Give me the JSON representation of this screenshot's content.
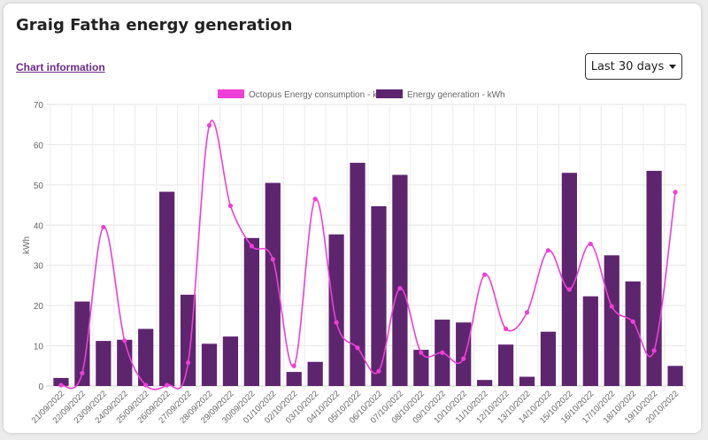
{
  "page": {
    "title": "Graig Fatha energy generation",
    "chart_info_link": "Chart information",
    "range_button": "Last 30 days"
  },
  "colors": {
    "consumption": "#ee3fd6",
    "generation": "#5e256f",
    "link": "#6a2b86"
  },
  "chart_data": {
    "type": "bar",
    "ylabel": "kWh",
    "ylim": [
      0,
      70
    ],
    "yticks": [
      0,
      10,
      20,
      30,
      40,
      50,
      60,
      70
    ],
    "grid": true,
    "legend_position": "top",
    "categories": [
      "21/09/2022",
      "22/09/2022",
      "23/09/2022",
      "24/09/2022",
      "25/09/2022",
      "26/09/2022",
      "27/09/2022",
      "28/09/2022",
      "29/09/2022",
      "30/09/2022",
      "01/10/2022",
      "02/10/2022",
      "03/10/2022",
      "04/10/2022",
      "05/10/2022",
      "06/10/2022",
      "07/10/2022",
      "08/10/2022",
      "09/10/2022",
      "10/10/2022",
      "11/10/2022",
      "12/10/2022",
      "13/10/2022",
      "14/10/2022",
      "15/10/2022",
      "16/10/2022",
      "17/10/2022",
      "18/10/2022",
      "19/10/2022",
      "20/10/2022"
    ],
    "series": [
      {
        "name": "Octopus Energy consumption - kWh",
        "type": "line",
        "values": [
          0.2,
          3.2,
          39.5,
          11.3,
          0.2,
          0.2,
          5.8,
          64.8,
          44.8,
          34.8,
          31.5,
          5.0,
          46.5,
          15.8,
          9.5,
          3.7,
          24.3,
          8.3,
          8.3,
          6.8,
          27.7,
          14.2,
          18.3,
          33.7,
          24.0,
          35.3,
          19.8,
          16.0,
          8.8,
          48.2
        ]
      },
      {
        "name": "Energy generation - kWh",
        "type": "bar",
        "values": [
          2.0,
          21.0,
          11.2,
          11.5,
          14.2,
          48.3,
          22.7,
          10.5,
          12.3,
          36.8,
          50.5,
          3.5,
          6.0,
          37.7,
          55.5,
          44.7,
          52.5,
          9.0,
          16.5,
          15.8,
          1.5,
          10.3,
          2.3,
          13.5,
          53.0,
          22.3,
          32.5,
          26.0,
          53.5,
          5.0
        ]
      }
    ]
  }
}
